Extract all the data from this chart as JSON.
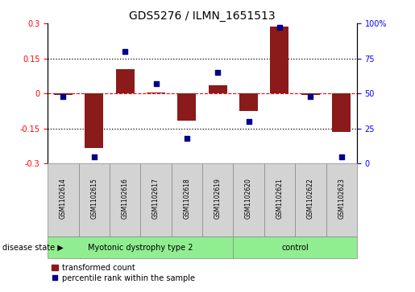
{
  "title": "GDS5276 / ILMN_1651513",
  "samples": [
    "GSM1102614",
    "GSM1102615",
    "GSM1102616",
    "GSM1102617",
    "GSM1102618",
    "GSM1102619",
    "GSM1102620",
    "GSM1102621",
    "GSM1102622",
    "GSM1102623"
  ],
  "transformed_count": [
    -0.005,
    -0.235,
    0.105,
    0.005,
    -0.115,
    0.035,
    -0.075,
    0.285,
    -0.005,
    -0.165
  ],
  "percentile_rank": [
    48,
    5,
    80,
    57,
    18,
    65,
    30,
    97,
    48,
    5
  ],
  "ylim_left": [
    -0.3,
    0.3
  ],
  "ylim_right": [
    0,
    100
  ],
  "yticks_left": [
    -0.3,
    -0.15,
    0.0,
    0.15,
    0.3
  ],
  "yticks_right": [
    0,
    25,
    50,
    75,
    100
  ],
  "bar_color": "#8B1A1A",
  "dot_color": "#00008B",
  "group1_label": "Myotonic dystrophy type 2",
  "group2_label": "control",
  "group1_indices": [
    0,
    1,
    2,
    3,
    4,
    5
  ],
  "group2_indices": [
    6,
    7,
    8,
    9
  ],
  "disease_state_label": "disease state",
  "legend_bar_label": "transformed count",
  "legend_dot_label": "percentile rank within the sample",
  "group1_color": "#90EE90",
  "group2_color": "#90EE90",
  "sample_box_color": "#D3D3D3",
  "title_fontsize": 10,
  "tick_fontsize": 7,
  "sample_fontsize": 5.5,
  "disease_fontsize": 7,
  "legend_fontsize": 7,
  "disease_state_fontsize": 7
}
